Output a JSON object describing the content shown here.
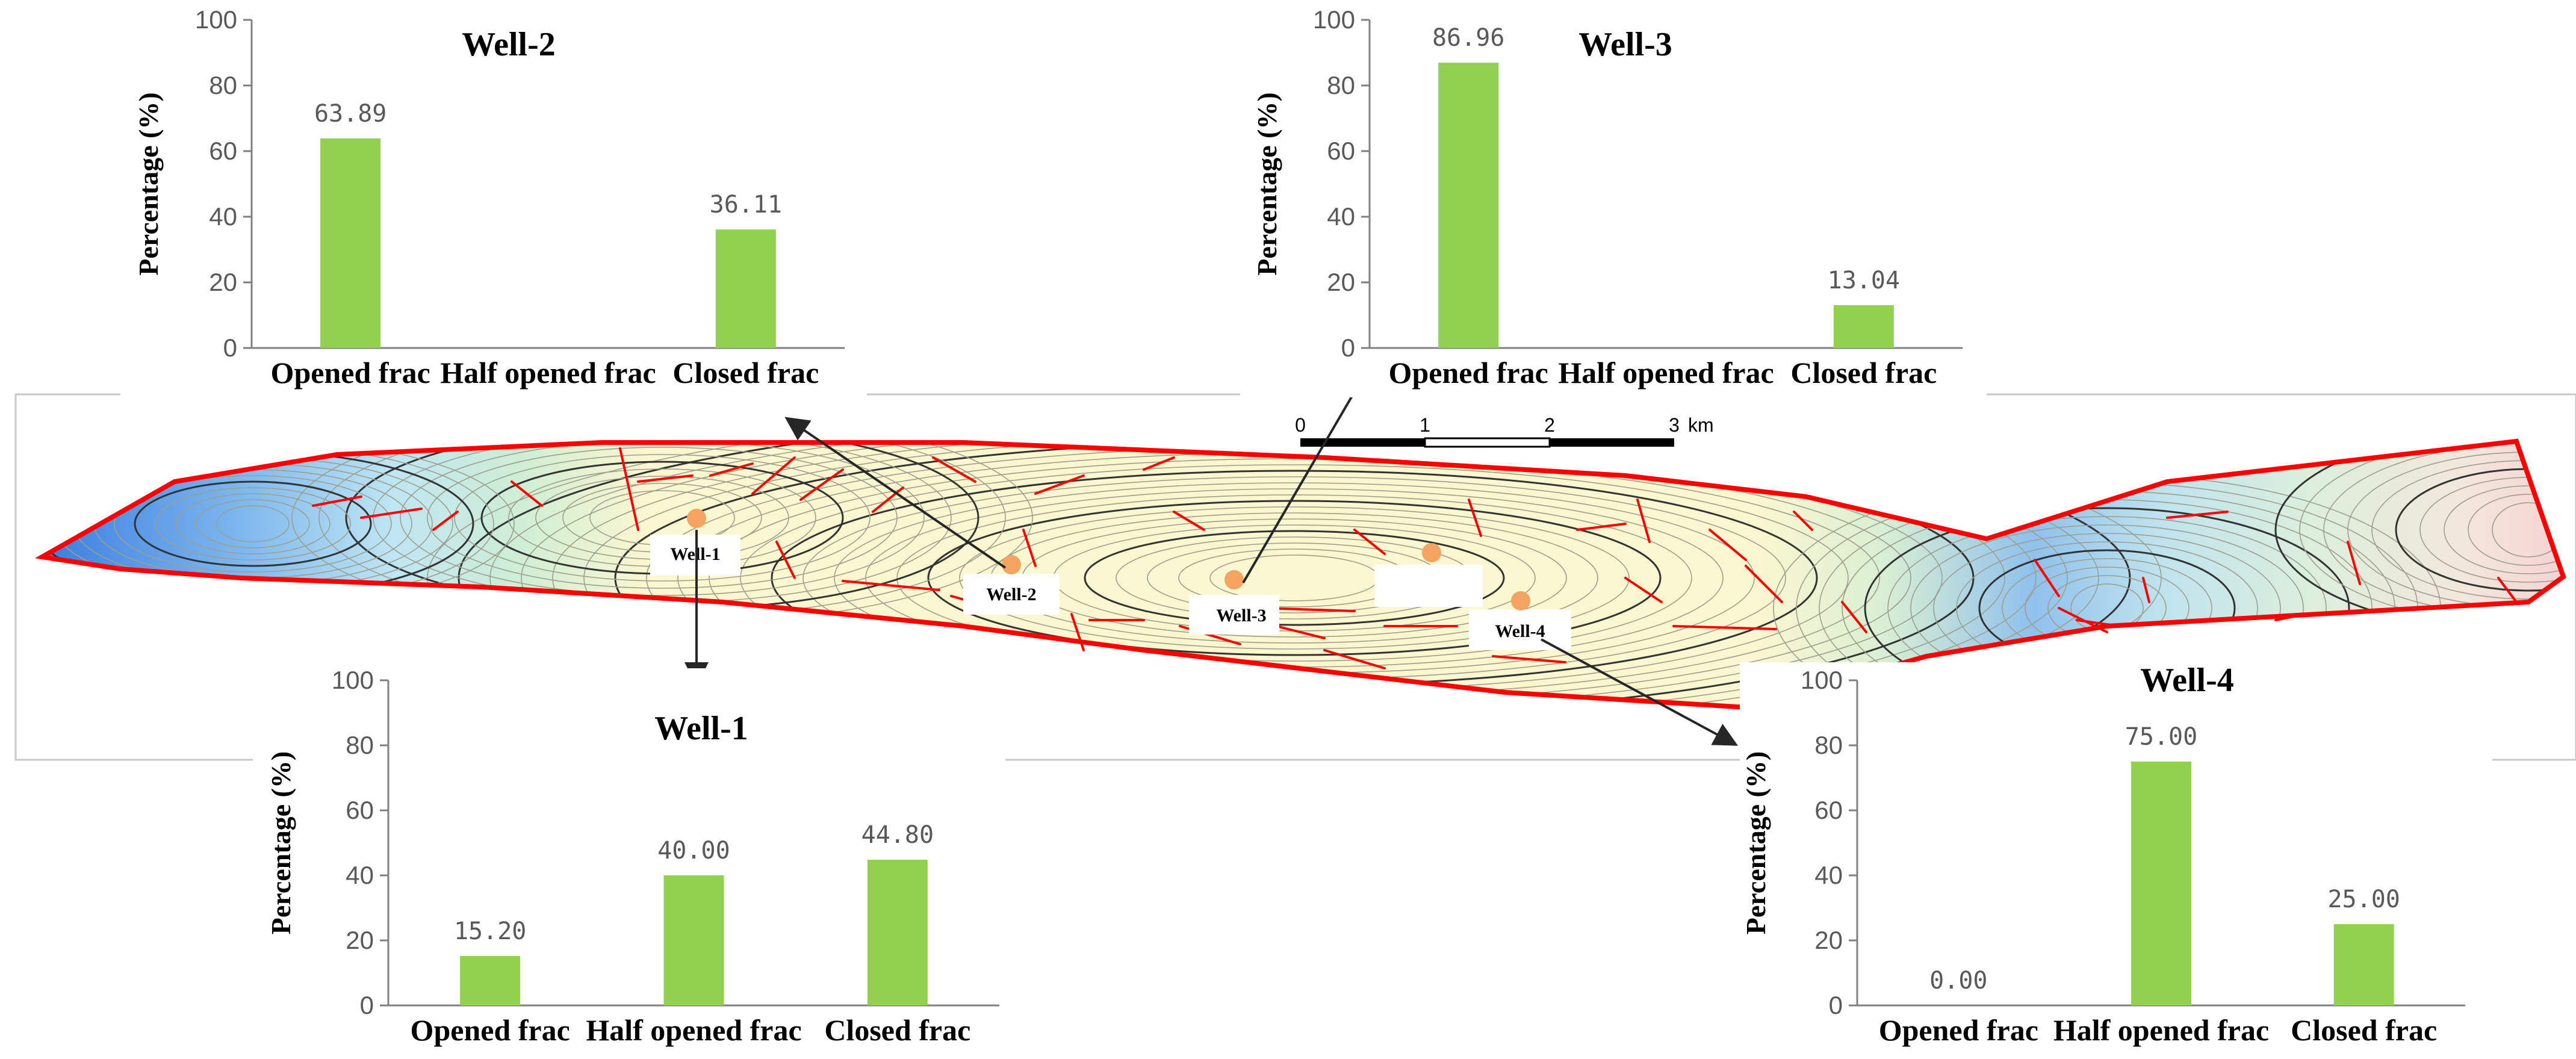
{
  "colors": {
    "bar": "#92d050",
    "fault": "#ff0000",
    "well_marker": "#f4a460",
    "arrow": "#262626",
    "axis": "#7f7f7f"
  },
  "map": {
    "wells": [
      "Well-1",
      "Well-2",
      "Well-3",
      "Well-4"
    ],
    "scale_ticks": [
      "0",
      "1",
      "2",
      "3"
    ],
    "scale_unit": "km"
  },
  "chart_data": [
    {
      "type": "bar",
      "title": "Well-2",
      "ylabel": "Percentage (%)",
      "categories": [
        "Opened frac",
        "Half opened frac",
        "Closed frac"
      ],
      "values": [
        63.89,
        null,
        36.11
      ],
      "data_labels": [
        "63.89",
        "",
        "36.11"
      ],
      "ylim": [
        0,
        100
      ],
      "yticks": [
        "0",
        "20",
        "40",
        "60",
        "80",
        "100"
      ],
      "grid": false
    },
    {
      "type": "bar",
      "title": "Well-3",
      "ylabel": "Percentage (%)",
      "categories": [
        "Opened frac",
        "Half opened frac",
        "Closed frac"
      ],
      "values": [
        86.96,
        null,
        13.04
      ],
      "data_labels": [
        "86.96",
        "",
        "13.04"
      ],
      "ylim": [
        0,
        100
      ],
      "yticks": [
        "0",
        "20",
        "40",
        "60",
        "80",
        "100"
      ],
      "grid": false
    },
    {
      "type": "bar",
      "title": "Well-1",
      "ylabel": "Percentage (%)",
      "categories": [
        "Opened frac",
        "Half opened frac",
        "Closed frac"
      ],
      "values": [
        15.2,
        40.0,
        44.8
      ],
      "data_labels": [
        "15.20",
        "40.00",
        "44.80"
      ],
      "ylim": [
        0,
        100
      ],
      "yticks": [
        "0",
        "20",
        "40",
        "60",
        "80",
        "100"
      ],
      "grid": false
    },
    {
      "type": "bar",
      "title": "Well-4",
      "ylabel": "Percentage (%)",
      "categories": [
        "Opened frac",
        "Half opened frac",
        "Closed frac"
      ],
      "values": [
        0.0,
        75.0,
        25.0
      ],
      "data_labels": [
        "0.00",
        "75.00",
        "25.00"
      ],
      "ylim": [
        0,
        100
      ],
      "yticks": [
        "0",
        "20",
        "40",
        "60",
        "80",
        "100"
      ],
      "grid": false
    }
  ]
}
